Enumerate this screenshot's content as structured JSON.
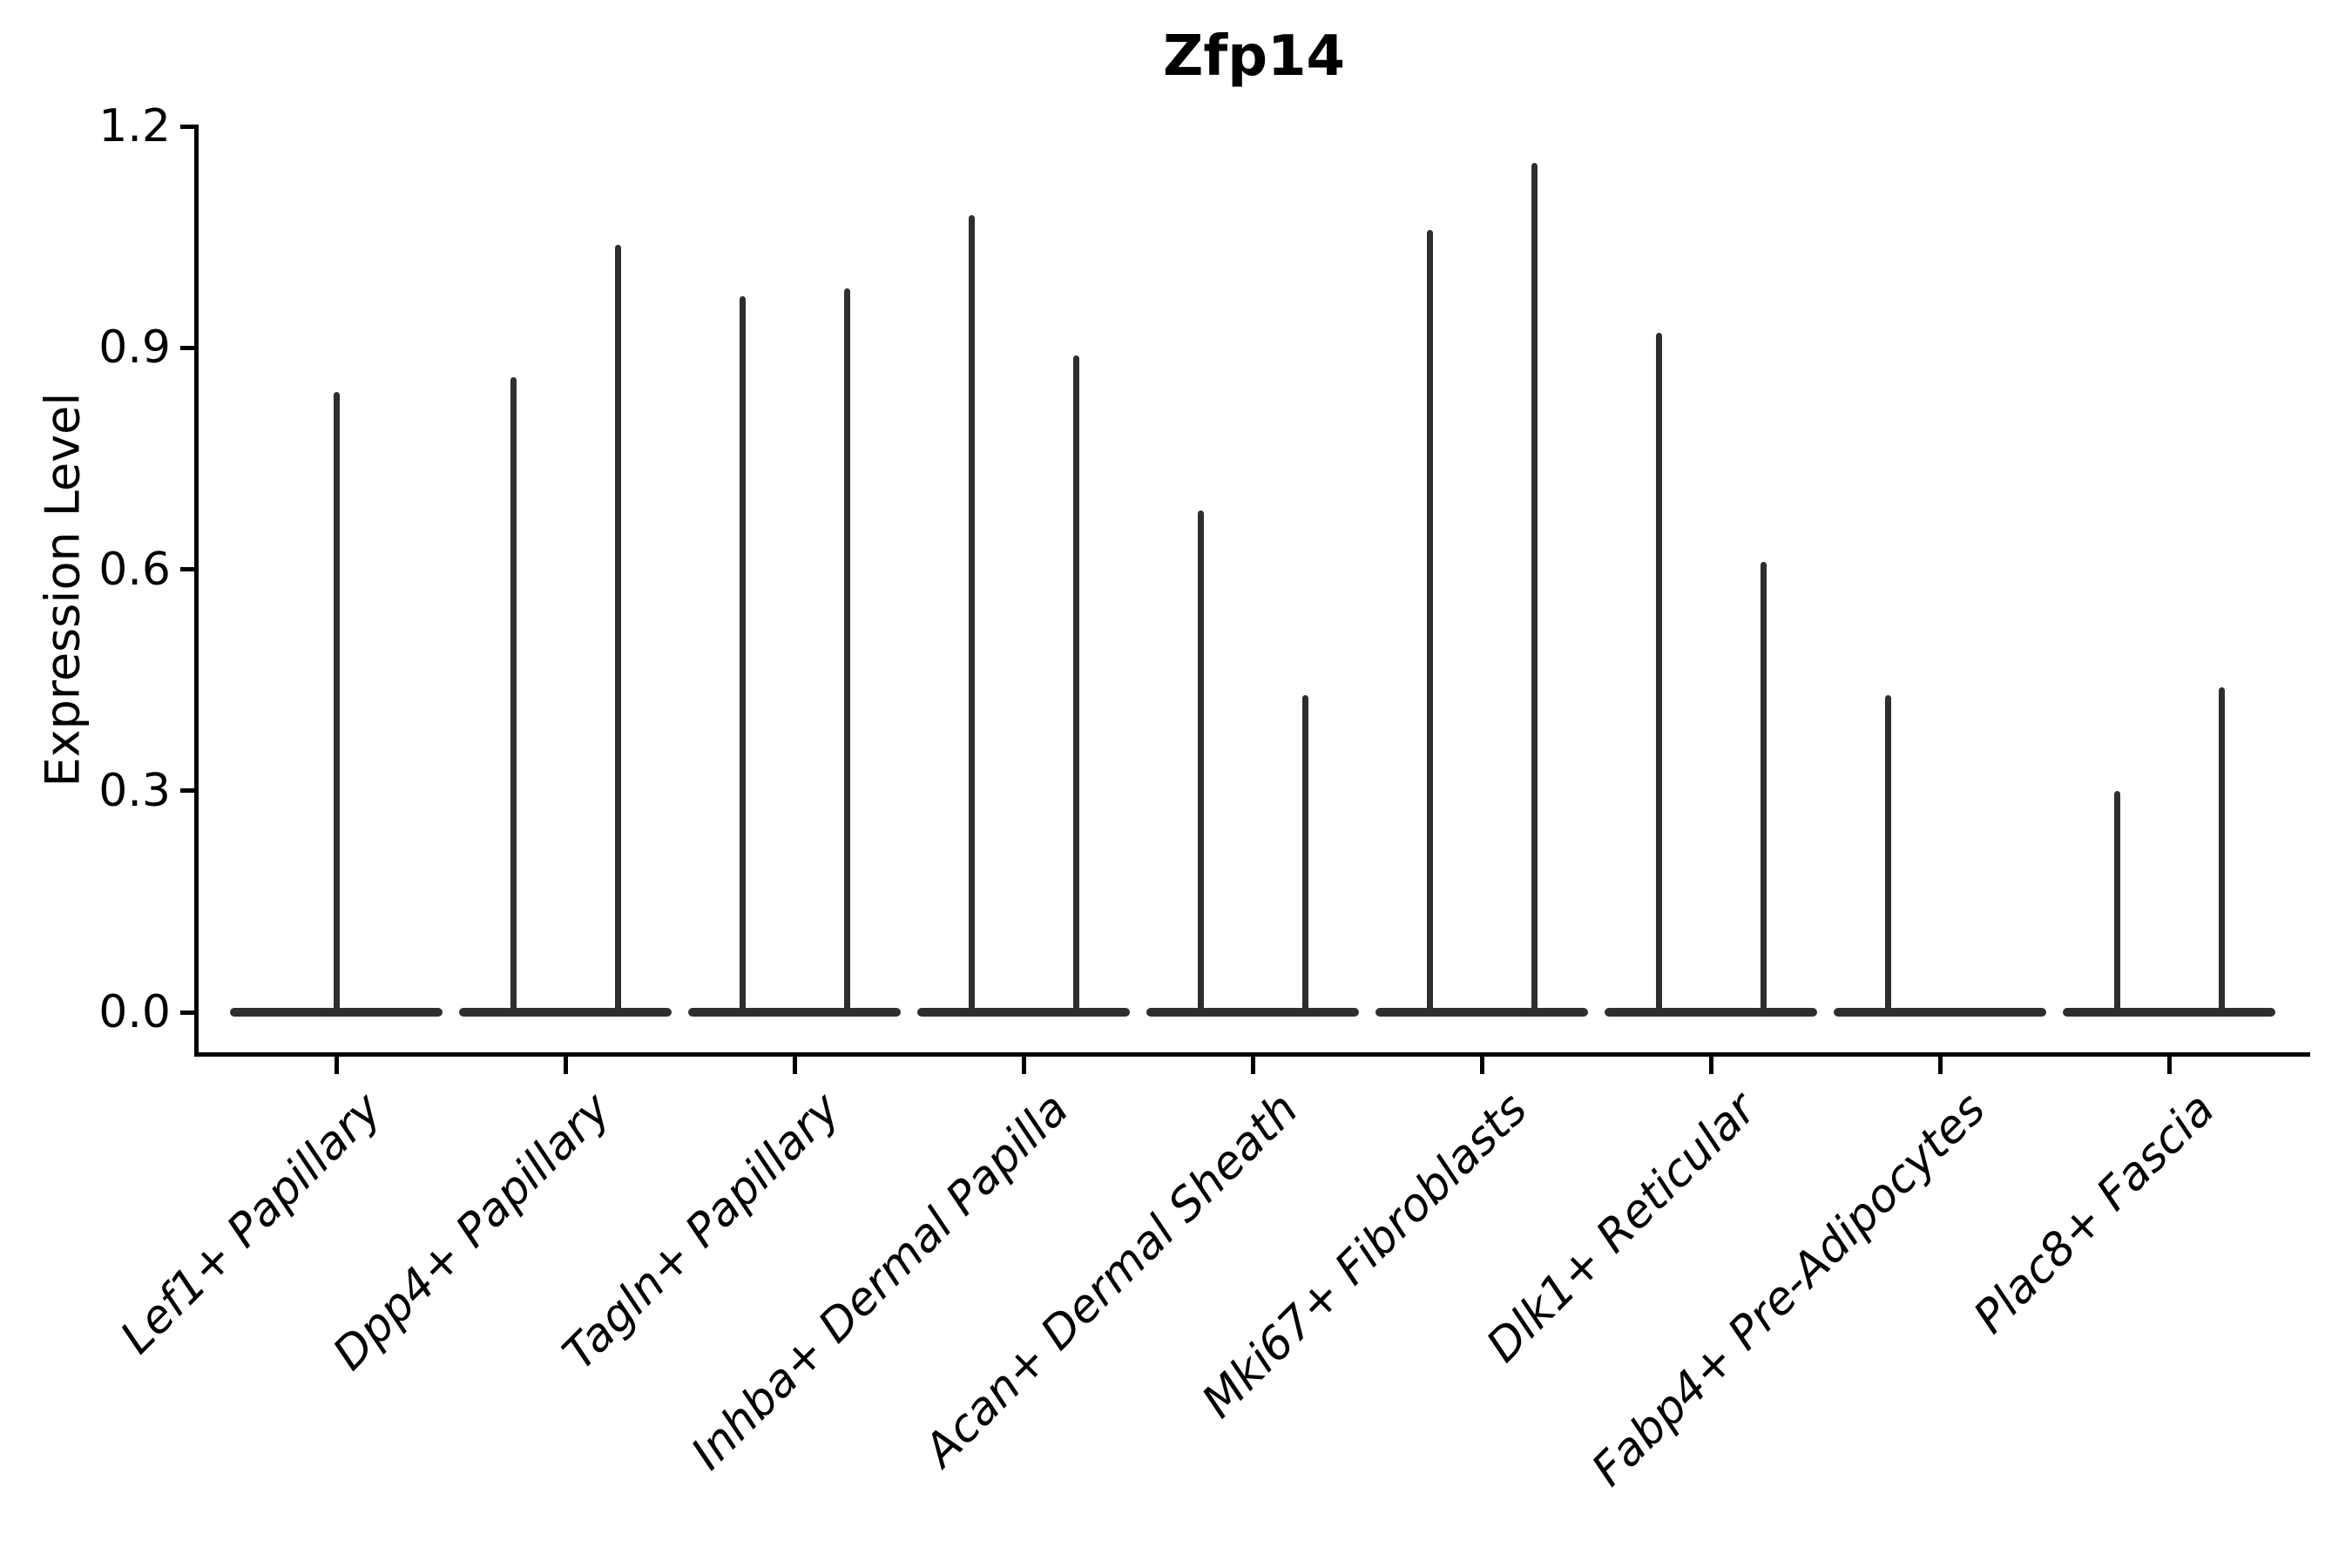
{
  "chart_data": {
    "type": "violin",
    "title": "Zfp14",
    "ylabel": "Expression Level",
    "xlabel": "",
    "ylim": [
      0.0,
      1.2
    ],
    "grid": false,
    "legend": "none",
    "yticks": [
      {
        "label": "0.0",
        "value": 0.0
      },
      {
        "label": "0.3",
        "value": 0.3
      },
      {
        "label": "0.6",
        "value": 0.6
      },
      {
        "label": "0.9",
        "value": 0.9
      },
      {
        "label": "1.2",
        "value": 1.2
      }
    ],
    "series": [
      {
        "category": "Lef1+ Papillary",
        "violins": [
          {
            "pos": "center",
            "max": 0.84
          }
        ]
      },
      {
        "category": "Dpp4+ Papillary",
        "violins": [
          {
            "pos": "left",
            "max": 0.86
          },
          {
            "pos": "right",
            "max": 1.04
          }
        ]
      },
      {
        "category": "Tagln+ Papillary",
        "violins": [
          {
            "pos": "left",
            "max": 0.97
          },
          {
            "pos": "right",
            "max": 0.98
          }
        ]
      },
      {
        "category": "Inhba+ Dermal Papilla",
        "violins": [
          {
            "pos": "left",
            "max": 1.08
          },
          {
            "pos": "right",
            "max": 0.89
          }
        ]
      },
      {
        "category": "Acan+ Dermal Sheath",
        "violins": [
          {
            "pos": "left",
            "max": 0.68
          },
          {
            "pos": "right",
            "max": 0.43
          }
        ]
      },
      {
        "category": "Mki67+ Fibroblasts",
        "violins": [
          {
            "pos": "left",
            "max": 1.06
          },
          {
            "pos": "right",
            "max": 1.15
          }
        ]
      },
      {
        "category": "Dlk1+ Reticular",
        "violins": [
          {
            "pos": "left",
            "max": 0.92
          },
          {
            "pos": "right",
            "max": 0.61
          }
        ]
      },
      {
        "category": "Fabp4+ Pre-Adipocytes",
        "violins": [
          {
            "pos": "left",
            "max": 0.43
          },
          {
            "pos": "right",
            "max": 0.0
          }
        ]
      },
      {
        "category": "Plac8+ Fascia",
        "violins": [
          {
            "pos": "left",
            "max": 0.3
          },
          {
            "pos": "right",
            "max": 0.44
          }
        ]
      }
    ],
    "colors": {
      "violin": "#2e2e2e",
      "axis": "#000000",
      "text": "#000000",
      "background": "#ffffff"
    }
  }
}
